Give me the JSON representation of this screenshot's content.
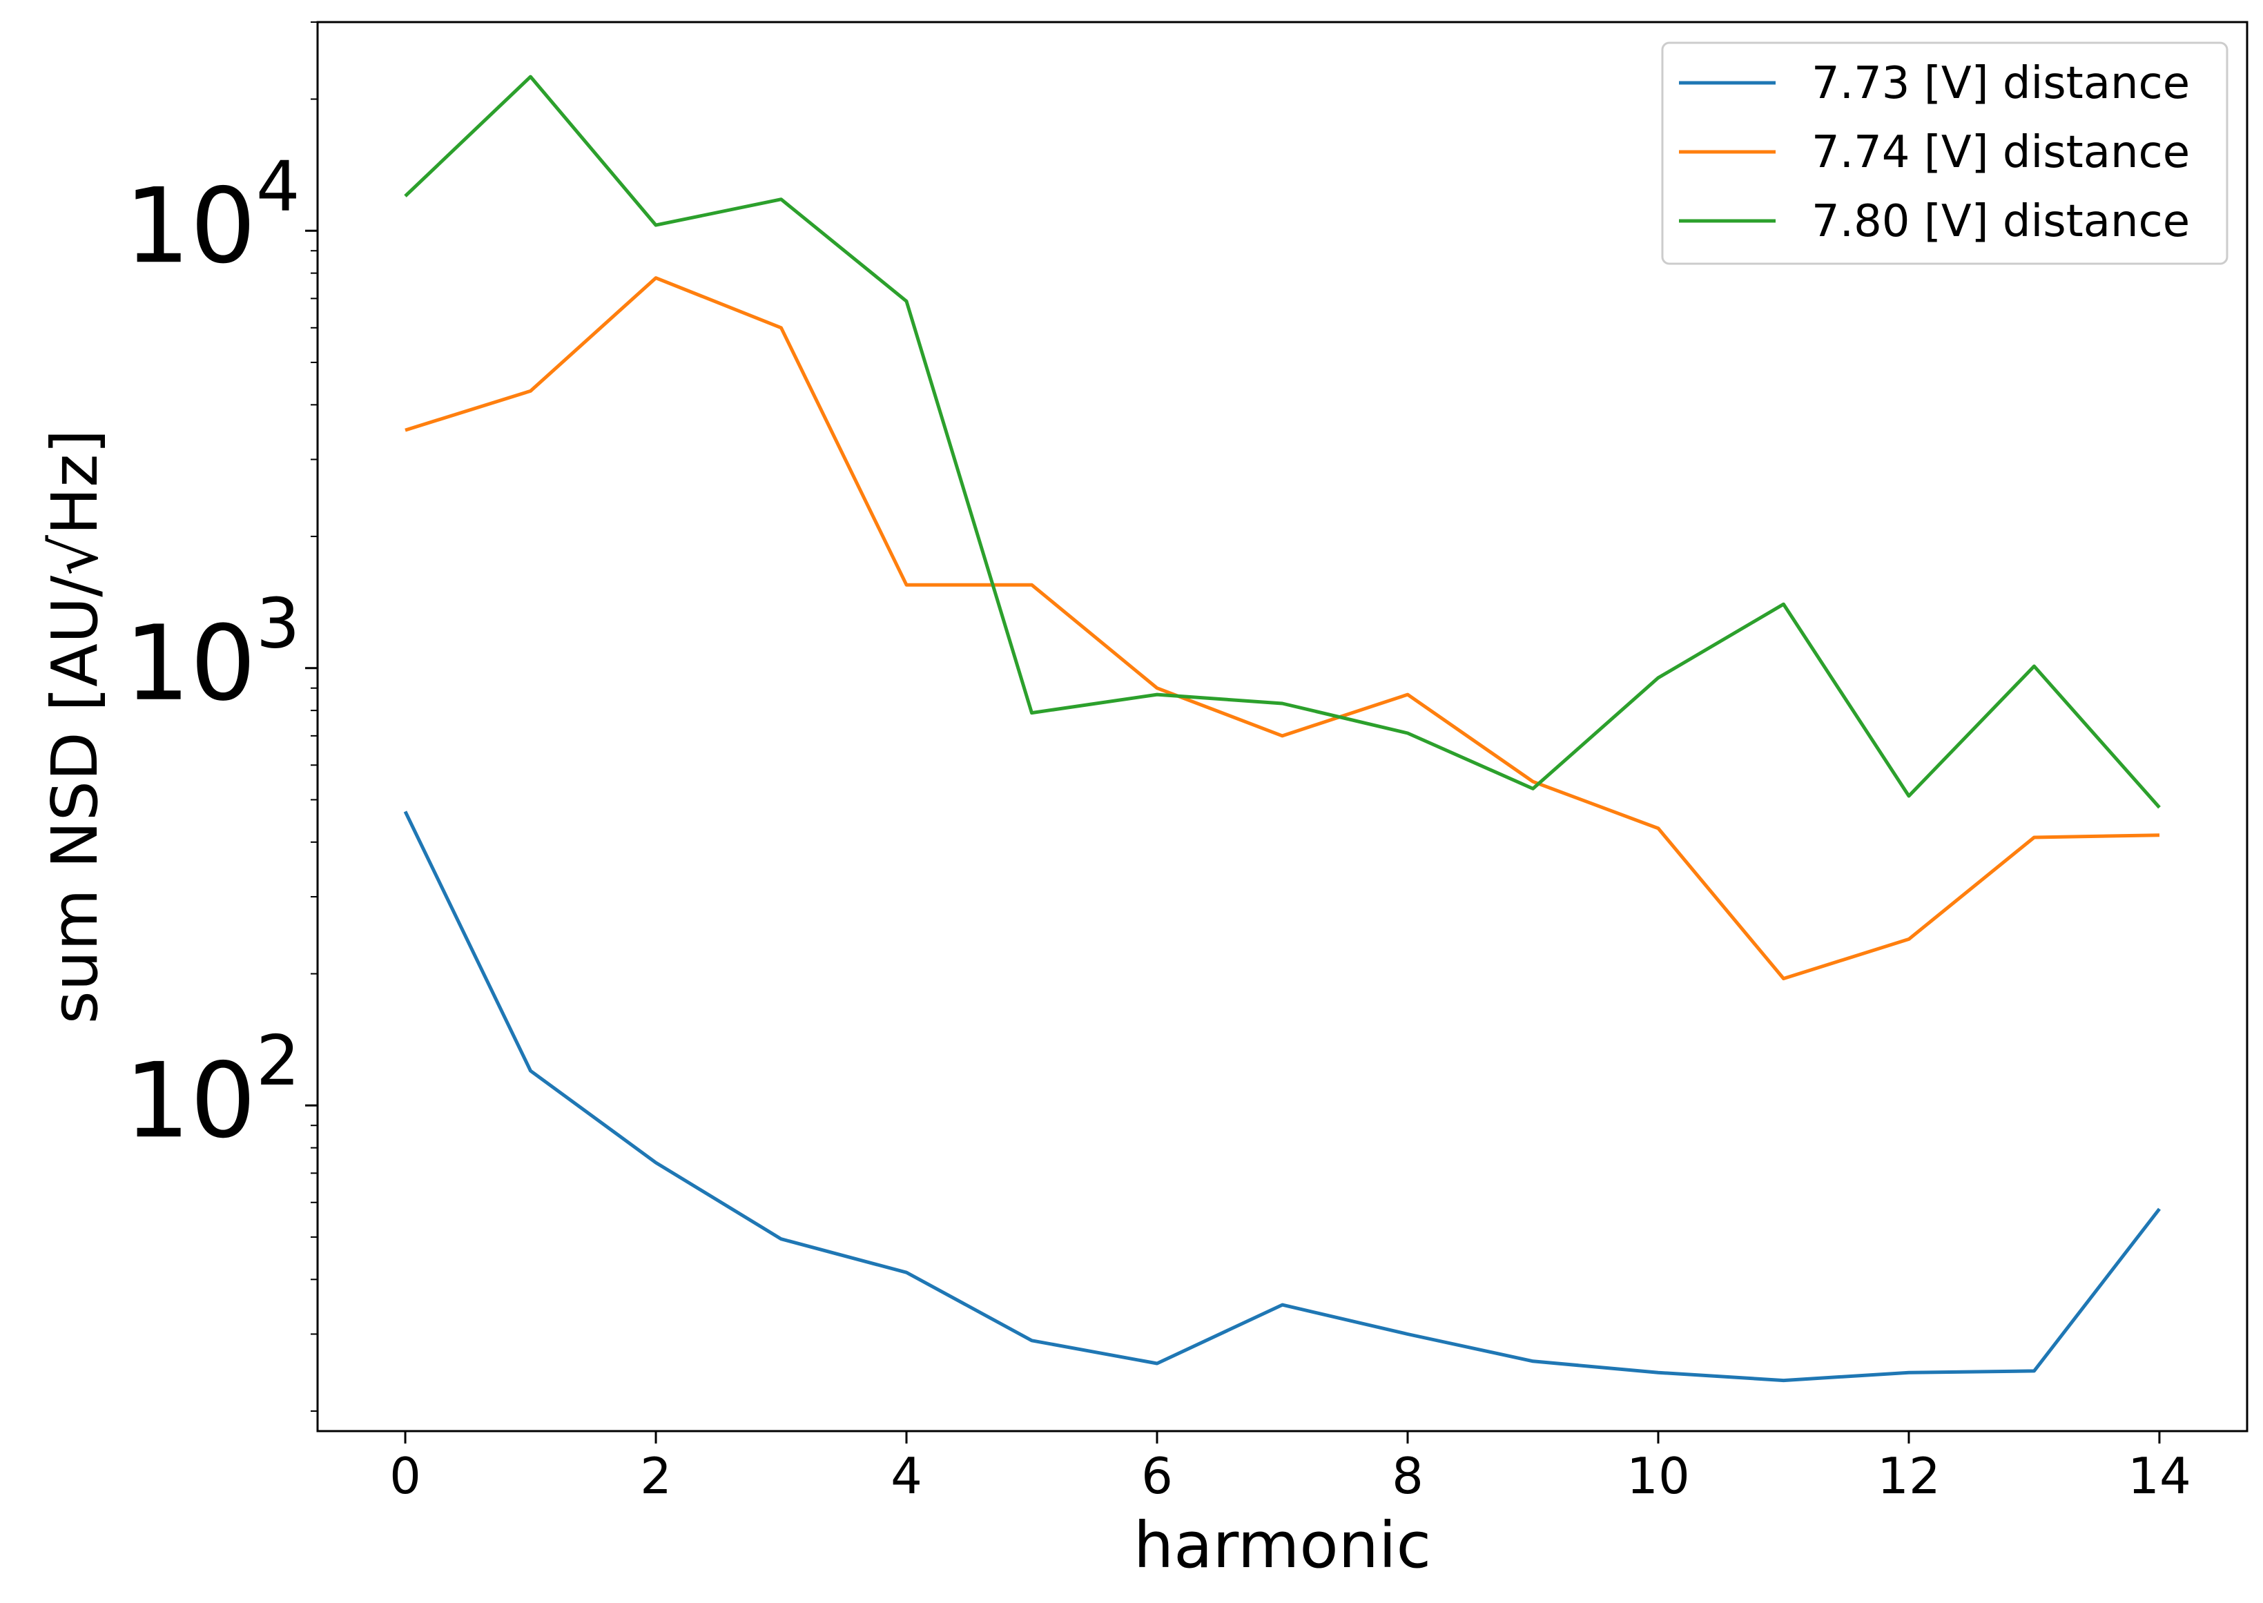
{
  "chart_data": {
    "type": "line",
    "xlabel": "harmonic",
    "ylabel": "sum NSD [AU/√Hz]",
    "yscale": "log",
    "xlim": [
      -0.7,
      14.7
    ],
    "ylim": [
      18,
      30000
    ],
    "xticks": [
      0,
      2,
      4,
      6,
      8,
      10,
      12,
      14
    ],
    "yticks": [
      {
        "value": 100,
        "base": "10",
        "exp": "2"
      },
      {
        "value": 1000,
        "base": "10",
        "exp": "3"
      },
      {
        "value": 10000,
        "base": "10",
        "exp": "4"
      }
    ],
    "grid": false,
    "legend_position": "top-right",
    "x": [
      0,
      1,
      2,
      3,
      4,
      5,
      6,
      7,
      8,
      9,
      10,
      11,
      12,
      13,
      14
    ],
    "series": [
      {
        "name": "7.73 [V] distance",
        "color": "#1f77b4",
        "values": [
          470,
          120,
          74,
          49.5,
          41.5,
          29,
          25.7,
          35,
          30,
          26,
          24.5,
          23.5,
          24.5,
          24.7,
          58
        ]
      },
      {
        "name": "7.74 [V] distance",
        "color": "#ff7f0e",
        "values": [
          3500,
          4300,
          7800,
          6000,
          1550,
          1550,
          900,
          700,
          870,
          550,
          430,
          195,
          240,
          410,
          415
        ]
      },
      {
        "name": "7.80 [V] distance",
        "color": "#2ca02c",
        "values": [
          12000,
          22500,
          10300,
          11800,
          6900,
          790,
          870,
          830,
          710,
          530,
          950,
          1400,
          510,
          1010,
          480
        ]
      }
    ]
  }
}
